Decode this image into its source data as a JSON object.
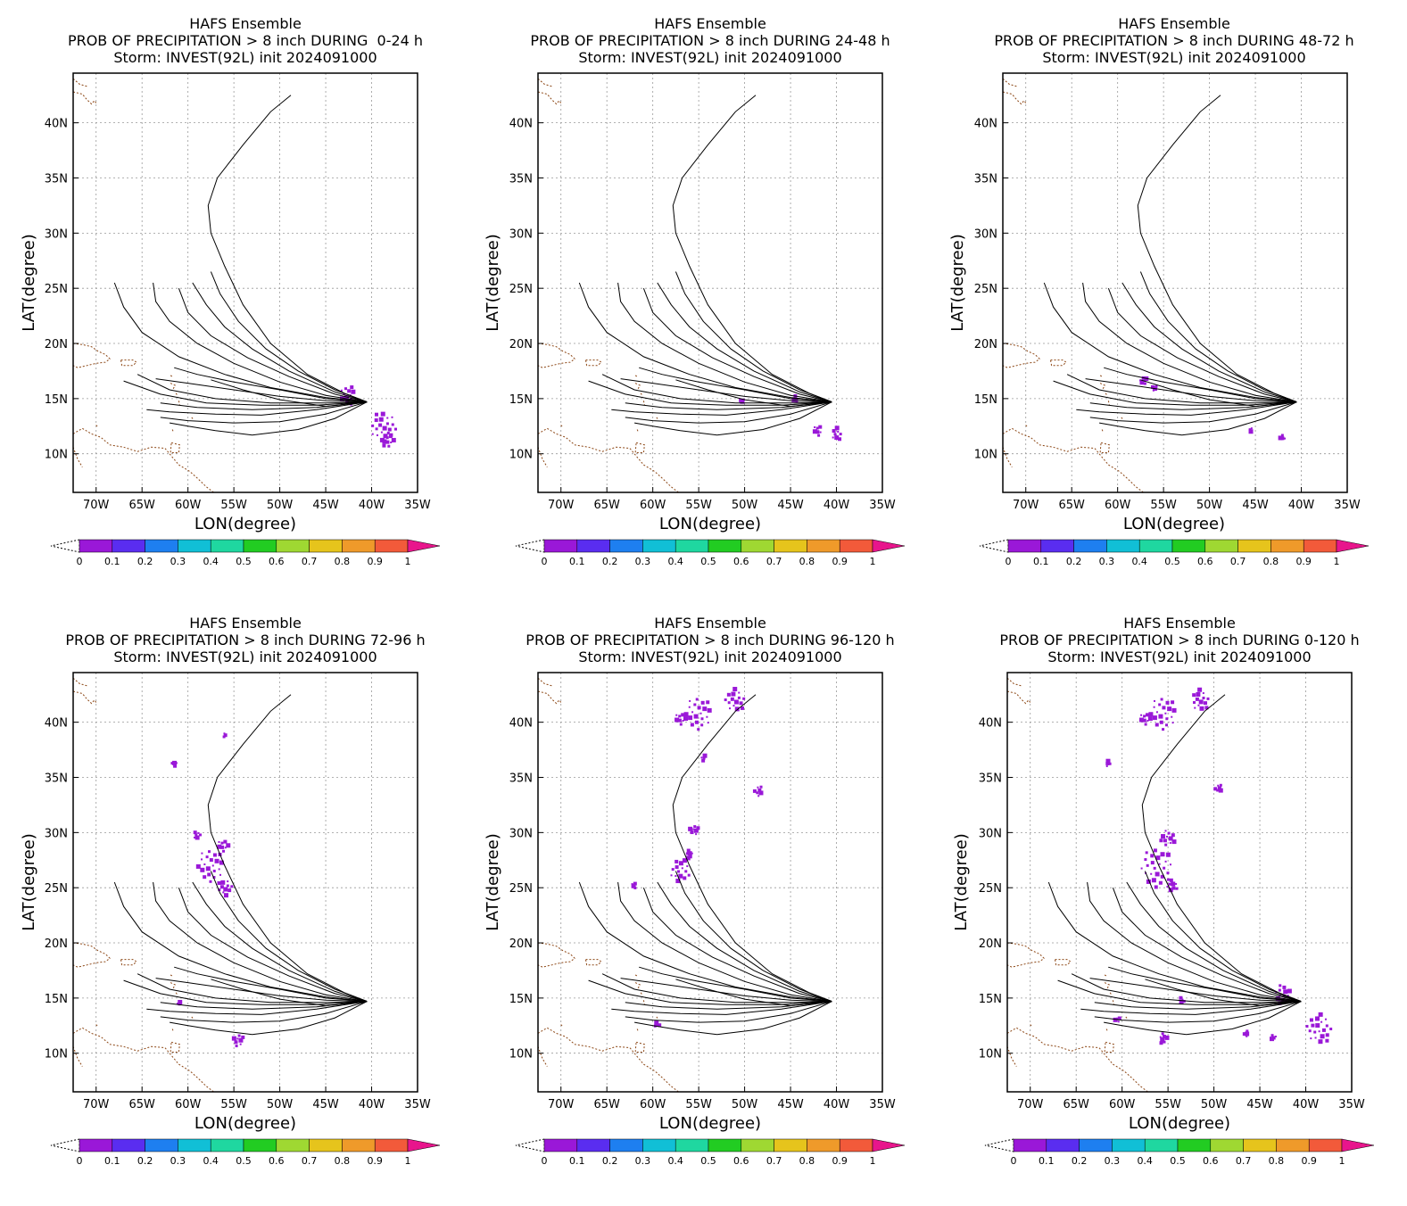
{
  "colors": {
    "track": "#000000",
    "coast": "#8b4513",
    "precip": "#9a18d8",
    "grid": "#999999",
    "colorbar": [
      "#9a18d8",
      "#5a2df0",
      "#1e7ff0",
      "#11bfd6",
      "#1fd7a0",
      "#22cc22",
      "#9fd832",
      "#e6c41c",
      "#ef9a2a",
      "#f25a3a",
      "#e8158c"
    ]
  },
  "shared": {
    "line1": "HAFS Ensemble",
    "line3": "Storm: INVEST(92L) init 2024091000",
    "x_axis_label": "LON(degree)",
    "y_axis_label": "LAT(degree)",
    "x_ticks": [
      "70W",
      "65W",
      "60W",
      "55W",
      "50W",
      "45W",
      "40W",
      "35W"
    ],
    "y_ticks": [
      "10N",
      "15N",
      "20N",
      "25N",
      "30N",
      "35N",
      "40N"
    ],
    "colorbar_ticks": [
      "0",
      "0.1",
      "0.2",
      "0.3",
      "0.4",
      "0.5",
      "0.6",
      "0.7",
      "0.8",
      "0.9",
      "1"
    ]
  },
  "map_extent": {
    "lon": [
      -72.5,
      -35
    ],
    "lat": [
      6.5,
      44.5
    ]
  },
  "panels": [
    {
      "title": "PROB OF PRECIPITATION > 8 inch DURING  0-24 h",
      "precip_blobs": [
        {
          "lon": -42.5,
          "lat": 15.3,
          "r": 0.9
        },
        {
          "lon": -38.7,
          "lat": 12.5,
          "r": 1.4
        },
        {
          "lon": -38.2,
          "lat": 11.2,
          "r": 0.7
        }
      ]
    },
    {
      "title": "PROB OF PRECIPITATION > 8 inch DURING 24-48 h",
      "precip_blobs": [
        {
          "lon": -44.5,
          "lat": 15.0,
          "r": 0.3
        },
        {
          "lon": -50.3,
          "lat": 14.8,
          "r": 0.2
        },
        {
          "lon": -42.0,
          "lat": 12.1,
          "r": 0.5
        },
        {
          "lon": -40.0,
          "lat": 11.8,
          "r": 0.6
        }
      ]
    },
    {
      "title": "PROB OF PRECIPITATION > 8 inch DURING 48-72 h",
      "precip_blobs": [
        {
          "lon": -57.2,
          "lat": 16.6,
          "r": 0.4
        },
        {
          "lon": -56.0,
          "lat": 16.0,
          "r": 0.3
        },
        {
          "lon": -42.0,
          "lat": 11.5,
          "r": 0.3
        },
        {
          "lon": -45.5,
          "lat": 12.2,
          "r": 0.2
        }
      ]
    },
    {
      "title": "PROB OF PRECIPITATION > 8 inch DURING 72-96 h",
      "precip_blobs": [
        {
          "lon": -57.5,
          "lat": 27.0,
          "r": 1.5
        },
        {
          "lon": -56.0,
          "lat": 25.0,
          "r": 0.8
        },
        {
          "lon": -56.2,
          "lat": 28.8,
          "r": 0.6
        },
        {
          "lon": -59.0,
          "lat": 29.8,
          "r": 0.4
        },
        {
          "lon": -54.5,
          "lat": 11.2,
          "r": 0.6
        },
        {
          "lon": -61.5,
          "lat": 36.2,
          "r": 0.3
        },
        {
          "lon": -56.0,
          "lat": 38.8,
          "r": 0.2
        },
        {
          "lon": -61.0,
          "lat": 14.5,
          "r": 0.2
        }
      ]
    },
    {
      "title": "PROB OF PRECIPITATION > 8 inch DURING 96-120 h",
      "precip_blobs": [
        {
          "lon": -55.0,
          "lat": 40.8,
          "r": 1.5
        },
        {
          "lon": -51.0,
          "lat": 42.0,
          "r": 1.1
        },
        {
          "lon": -57.0,
          "lat": 40.3,
          "r": 0.6
        },
        {
          "lon": -57.0,
          "lat": 26.5,
          "r": 1.1
        },
        {
          "lon": -55.5,
          "lat": 30.2,
          "r": 0.5
        },
        {
          "lon": -56.0,
          "lat": 28.0,
          "r": 0.4
        },
        {
          "lon": -48.5,
          "lat": 33.8,
          "r": 0.5
        },
        {
          "lon": -54.5,
          "lat": 36.8,
          "r": 0.3
        },
        {
          "lon": -59.5,
          "lat": 12.6,
          "r": 0.3
        },
        {
          "lon": -62.0,
          "lat": 25.2,
          "r": 0.3
        }
      ]
    },
    {
      "title": "PROB OF PRECIPITATION > 8 inch DURING 0-120 h",
      "precip_blobs": [
        {
          "lon": -55.5,
          "lat": 40.8,
          "r": 1.5
        },
        {
          "lon": -51.5,
          "lat": 42.0,
          "r": 1.0
        },
        {
          "lon": -57.5,
          "lat": 40.3,
          "r": 0.6
        },
        {
          "lon": -56.2,
          "lat": 26.8,
          "r": 1.8
        },
        {
          "lon": -55.0,
          "lat": 29.5,
          "r": 0.8
        },
        {
          "lon": -54.5,
          "lat": 25.2,
          "r": 0.6
        },
        {
          "lon": -49.5,
          "lat": 34.0,
          "r": 0.4
        },
        {
          "lon": -42.5,
          "lat": 15.3,
          "r": 0.9
        },
        {
          "lon": -38.5,
          "lat": 12.2,
          "r": 1.4
        },
        {
          "lon": -55.5,
          "lat": 11.3,
          "r": 0.5
        },
        {
          "lon": -61.5,
          "lat": 36.2,
          "r": 0.3
        },
        {
          "lon": -60.5,
          "lat": 13.0,
          "r": 0.3
        },
        {
          "lon": -53.5,
          "lat": 14.8,
          "r": 0.3
        },
        {
          "lon": -46.5,
          "lat": 11.8,
          "r": 0.3
        },
        {
          "lon": -43.5,
          "lat": 11.5,
          "r": 0.3
        }
      ]
    }
  ],
  "tracks": [
    [
      [
        -40.5,
        14.7
      ],
      [
        -43,
        15.5
      ],
      [
        -47,
        17.2
      ],
      [
        -51,
        20
      ],
      [
        -54,
        23.5
      ],
      [
        -56,
        27
      ],
      [
        -57.5,
        30
      ],
      [
        -57.8,
        32.5
      ],
      [
        -56.8,
        35
      ],
      [
        -54,
        38
      ],
      [
        -51,
        41
      ],
      [
        -48.8,
        42.5
      ]
    ],
    [
      [
        -40.5,
        14.7
      ],
      [
        -44,
        15.8
      ],
      [
        -48,
        17.5
      ],
      [
        -51.5,
        19.5
      ],
      [
        -54.5,
        22
      ],
      [
        -56.5,
        24.5
      ],
      [
        -57.5,
        26.5
      ]
    ],
    [
      [
        -40.5,
        14.7
      ],
      [
        -44,
        15.6
      ],
      [
        -49,
        17.5
      ],
      [
        -53,
        19.5
      ],
      [
        -56,
        21.5
      ],
      [
        -58,
        23.5
      ],
      [
        -59.5,
        25.5
      ]
    ],
    [
      [
        -40.5,
        14.7
      ],
      [
        -44,
        15.4
      ],
      [
        -49,
        17
      ],
      [
        -53.5,
        18.7
      ],
      [
        -57.5,
        20.7
      ],
      [
        -60,
        22.8
      ],
      [
        -61,
        25
      ]
    ],
    [
      [
        -40.5,
        14.7
      ],
      [
        -45,
        15.3
      ],
      [
        -50,
        16.5
      ],
      [
        -55,
        18.2
      ],
      [
        -59,
        20
      ],
      [
        -62,
        22
      ],
      [
        -63.5,
        23.8
      ],
      [
        -63.8,
        25.5
      ]
    ],
    [
      [
        -40.5,
        14.7
      ],
      [
        -45,
        15.1
      ],
      [
        -51,
        16
      ],
      [
        -56,
        17.2
      ],
      [
        -61,
        18.8
      ],
      [
        -65,
        21
      ],
      [
        -67,
        23.3
      ],
      [
        -68,
        25.5
      ]
    ],
    [
      [
        -40.5,
        14.7
      ],
      [
        -45,
        15
      ],
      [
        -50,
        15.8
      ],
      [
        -55,
        16.5
      ],
      [
        -59,
        17.2
      ],
      [
        -61.5,
        17.8
      ]
    ],
    [
      [
        -40.5,
        14.7
      ],
      [
        -45,
        14.8
      ],
      [
        -50,
        15.2
      ],
      [
        -55,
        15.8
      ],
      [
        -60,
        16.4
      ],
      [
        -63.5,
        16.8
      ]
    ],
    [
      [
        -40.5,
        14.7
      ],
      [
        -45,
        14.6
      ],
      [
        -51,
        14.6
      ],
      [
        -57,
        15
      ],
      [
        -62,
        15.8
      ],
      [
        -65.5,
        17.2
      ]
    ],
    [
      [
        -40.5,
        14.7
      ],
      [
        -46,
        14.4
      ],
      [
        -52,
        14.4
      ],
      [
        -58,
        14.6
      ],
      [
        -63,
        15.4
      ],
      [
        -67,
        16.6
      ]
    ],
    [
      [
        -40.5,
        14.7
      ],
      [
        -46,
        14.2
      ],
      [
        -53,
        14
      ],
      [
        -59,
        14.2
      ],
      [
        -63,
        14.6
      ]
    ],
    [
      [
        -40.5,
        14.7
      ],
      [
        -46,
        14
      ],
      [
        -52,
        13.5
      ],
      [
        -57,
        13.6
      ],
      [
        -62,
        13.8
      ],
      [
        -64.5,
        14
      ]
    ],
    [
      [
        -40.5,
        14.7
      ],
      [
        -45,
        13.6
      ],
      [
        -50,
        12.9
      ],
      [
        -55,
        12.8
      ],
      [
        -60,
        13
      ],
      [
        -63,
        13.3
      ]
    ],
    [
      [
        -40.5,
        14.7
      ],
      [
        -44,
        13.2
      ],
      [
        -48,
        12.2
      ],
      [
        -53,
        11.7
      ],
      [
        -57,
        12.1
      ],
      [
        -60,
        12.5
      ],
      [
        -62,
        12.8
      ]
    ],
    [
      [
        -40.5,
        14.7
      ],
      [
        -45,
        14.3
      ],
      [
        -50,
        14.9
      ],
      [
        -54,
        15.8
      ],
      [
        -57.5,
        16.7
      ]
    ]
  ]
}
